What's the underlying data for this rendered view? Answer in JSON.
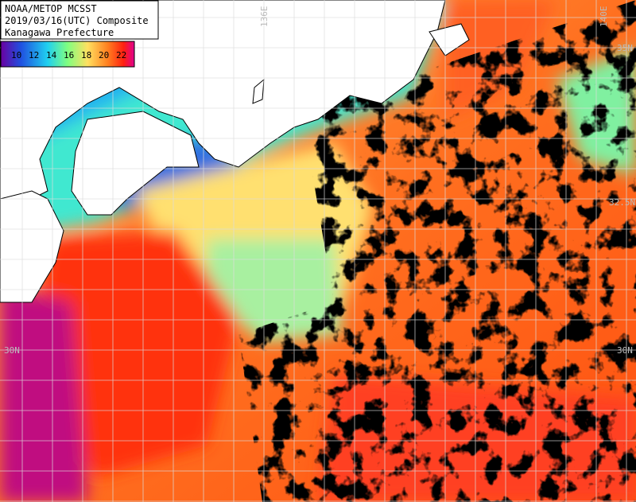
{
  "header": {
    "lines": [
      "NOAA/METOP MCSST",
      "2019/03/16(UTC) Composite",
      "Kanagawa Prefecture"
    ]
  },
  "legend": {
    "labels": [
      "10",
      "12",
      "14",
      "16",
      "18",
      "20",
      "22"
    ]
  },
  "grid_labels": {
    "longitude": [
      "136E",
      "140E"
    ],
    "latitude_right": [
      "35N",
      "32.5N",
      "30N"
    ],
    "latitude_left": [
      "30N"
    ]
  }
}
